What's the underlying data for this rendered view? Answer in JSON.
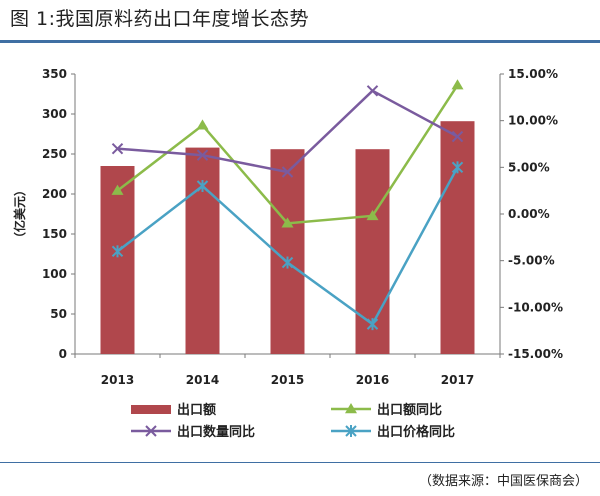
{
  "title": "图 1:我国原料药出口年度增长态势",
  "source": "（数据来源：中国医保商会）",
  "chart_data": {
    "type": "bar",
    "categories": [
      "2013",
      "2014",
      "2015",
      "2016",
      "2017"
    ],
    "ylabel": "（亿美元）",
    "ylim": [
      0,
      350
    ],
    "y_ticks": [
      "0",
      "50",
      "100",
      "150",
      "200",
      "250",
      "300",
      "350"
    ],
    "y2lim": [
      -15,
      15
    ],
    "y2_ticks": [
      "-15.00%",
      "-10.00%",
      "-5.00%",
      "0.00%",
      "5.00%",
      "10.00%",
      "15.00%"
    ],
    "grid": false,
    "legend_position": "bottom",
    "series": [
      {
        "name": "出口额",
        "kind": "bar",
        "axis": "left",
        "color": "#b0474c",
        "values": [
          235,
          258,
          256,
          256,
          291
        ]
      },
      {
        "name": "出口额同比",
        "kind": "line",
        "axis": "right",
        "marker": "triangle",
        "color": "#8cbb4a",
        "values": [
          2.5,
          9.5,
          -1.0,
          -0.2,
          13.8
        ]
      },
      {
        "name": "出口数量同比",
        "kind": "line",
        "axis": "right",
        "marker": "x",
        "color": "#7a5b9e",
        "values": [
          7.0,
          6.3,
          4.5,
          13.2,
          8.3
        ]
      },
      {
        "name": "出口价格同比",
        "kind": "line",
        "axis": "right",
        "marker": "star",
        "color": "#4aa2c4",
        "values": [
          -4.0,
          3.0,
          -5.2,
          -11.8,
          5.0
        ]
      }
    ]
  }
}
